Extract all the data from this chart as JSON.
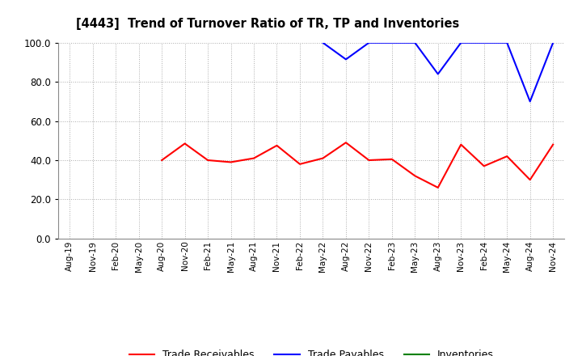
{
  "title": "[4443]  Trend of Turnover Ratio of TR, TP and Inventories",
  "x_labels": [
    "Aug-19",
    "Nov-19",
    "Feb-20",
    "May-20",
    "Aug-20",
    "Nov-20",
    "Feb-21",
    "May-21",
    "Aug-21",
    "Nov-21",
    "Feb-22",
    "May-22",
    "Aug-22",
    "Nov-22",
    "Feb-23",
    "May-23",
    "Aug-23",
    "Nov-23",
    "Feb-24",
    "May-24",
    "Aug-24",
    "Nov-24"
  ],
  "trade_receivables": [
    null,
    null,
    null,
    null,
    40.0,
    48.5,
    40.0,
    39.0,
    41.0,
    47.5,
    38.0,
    41.0,
    49.0,
    40.0,
    40.5,
    32.0,
    26.0,
    48.0,
    37.0,
    42.0,
    30.0,
    48.0
  ],
  "trade_payables": [
    null,
    null,
    null,
    null,
    null,
    null,
    null,
    null,
    null,
    null,
    null,
    100.0,
    91.5,
    100.0,
    100.0,
    100.0,
    84.0,
    100.0,
    100.0,
    100.0,
    70.0,
    100.0
  ],
  "inventories": [
    null,
    null,
    null,
    null,
    null,
    null,
    null,
    null,
    null,
    null,
    null,
    null,
    null,
    null,
    null,
    null,
    null,
    null,
    null,
    null,
    null,
    null
  ],
  "ylim": [
    0.0,
    100.0
  ],
  "yticks": [
    0.0,
    20.0,
    40.0,
    60.0,
    80.0,
    100.0
  ],
  "tr_color": "#FF0000",
  "tp_color": "#0000FF",
  "inv_color": "#008000",
  "background_color": "#FFFFFF",
  "grid_color": "#AAAAAA"
}
